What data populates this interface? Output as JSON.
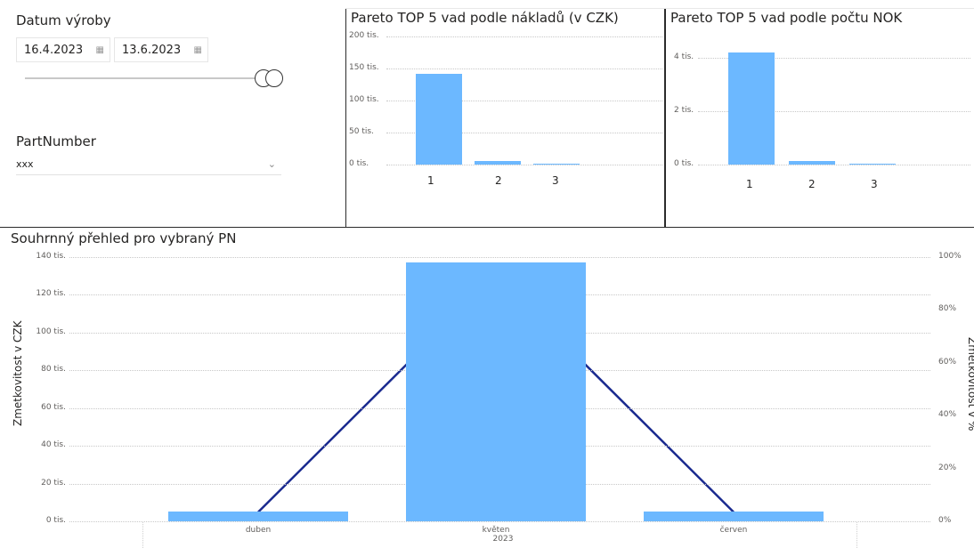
{
  "filters": {
    "date": {
      "label": "Datum výroby",
      "start": "16.4.2023",
      "end": "13.6.2023",
      "calendar_icon": "calendar-icon"
    },
    "partnumber": {
      "label": "PartNumber",
      "selected": "xxx",
      "chevron_icon": "chevron-down-icon"
    }
  },
  "chart_data": [
    {
      "type": "bar",
      "title": "Pareto TOP 5 vad podle nákladů (v CZK)",
      "categories": [
        "1",
        "2",
        "3"
      ],
      "values": [
        142000,
        5000,
        2000
      ],
      "y_ticks": [
        "200 tis.",
        "150 tis.",
        "100 tis.",
        "50 tis.",
        "0 tis."
      ],
      "ylim": [
        0,
        200000
      ],
      "color": "#6cb8ff"
    },
    {
      "type": "bar",
      "title": "Pareto TOP 5 vad podle počtu NOK",
      "categories": [
        "1",
        "2",
        "3"
      ],
      "values": [
        4200,
        150,
        40
      ],
      "y_ticks": [
        "4 tis.",
        "2 tis.",
        "0 tis."
      ],
      "ylim": [
        0,
        4500
      ],
      "color": "#6cb8ff"
    },
    {
      "type": "bar",
      "title": "Souhrnný přehled pro vybraný PN",
      "categories": [
        "duben",
        "květen",
        "červen"
      ],
      "x_group_label": "2023",
      "values": [
        5000,
        137000,
        5000
      ],
      "ylabel": "Zmetkovitost v CZK",
      "y2label": "Zmetkovitost v %",
      "y_ticks": [
        "140 tis.",
        "120 tis.",
        "100 tis.",
        "80 tis.",
        "60 tis.",
        "40 tis.",
        "20 tis.",
        "0 tis."
      ],
      "y2_ticks": [
        "100%",
        "80%",
        "60%",
        "40%",
        "20%",
        "0%"
      ],
      "ylim": [
        0,
        140000
      ],
      "y2lim": [
        0,
        100
      ],
      "line_series_values": [
        3.5,
        93,
        3.5
      ],
      "bar_color": "#6cb8ff",
      "line_color": "#1a2a8f"
    }
  ]
}
